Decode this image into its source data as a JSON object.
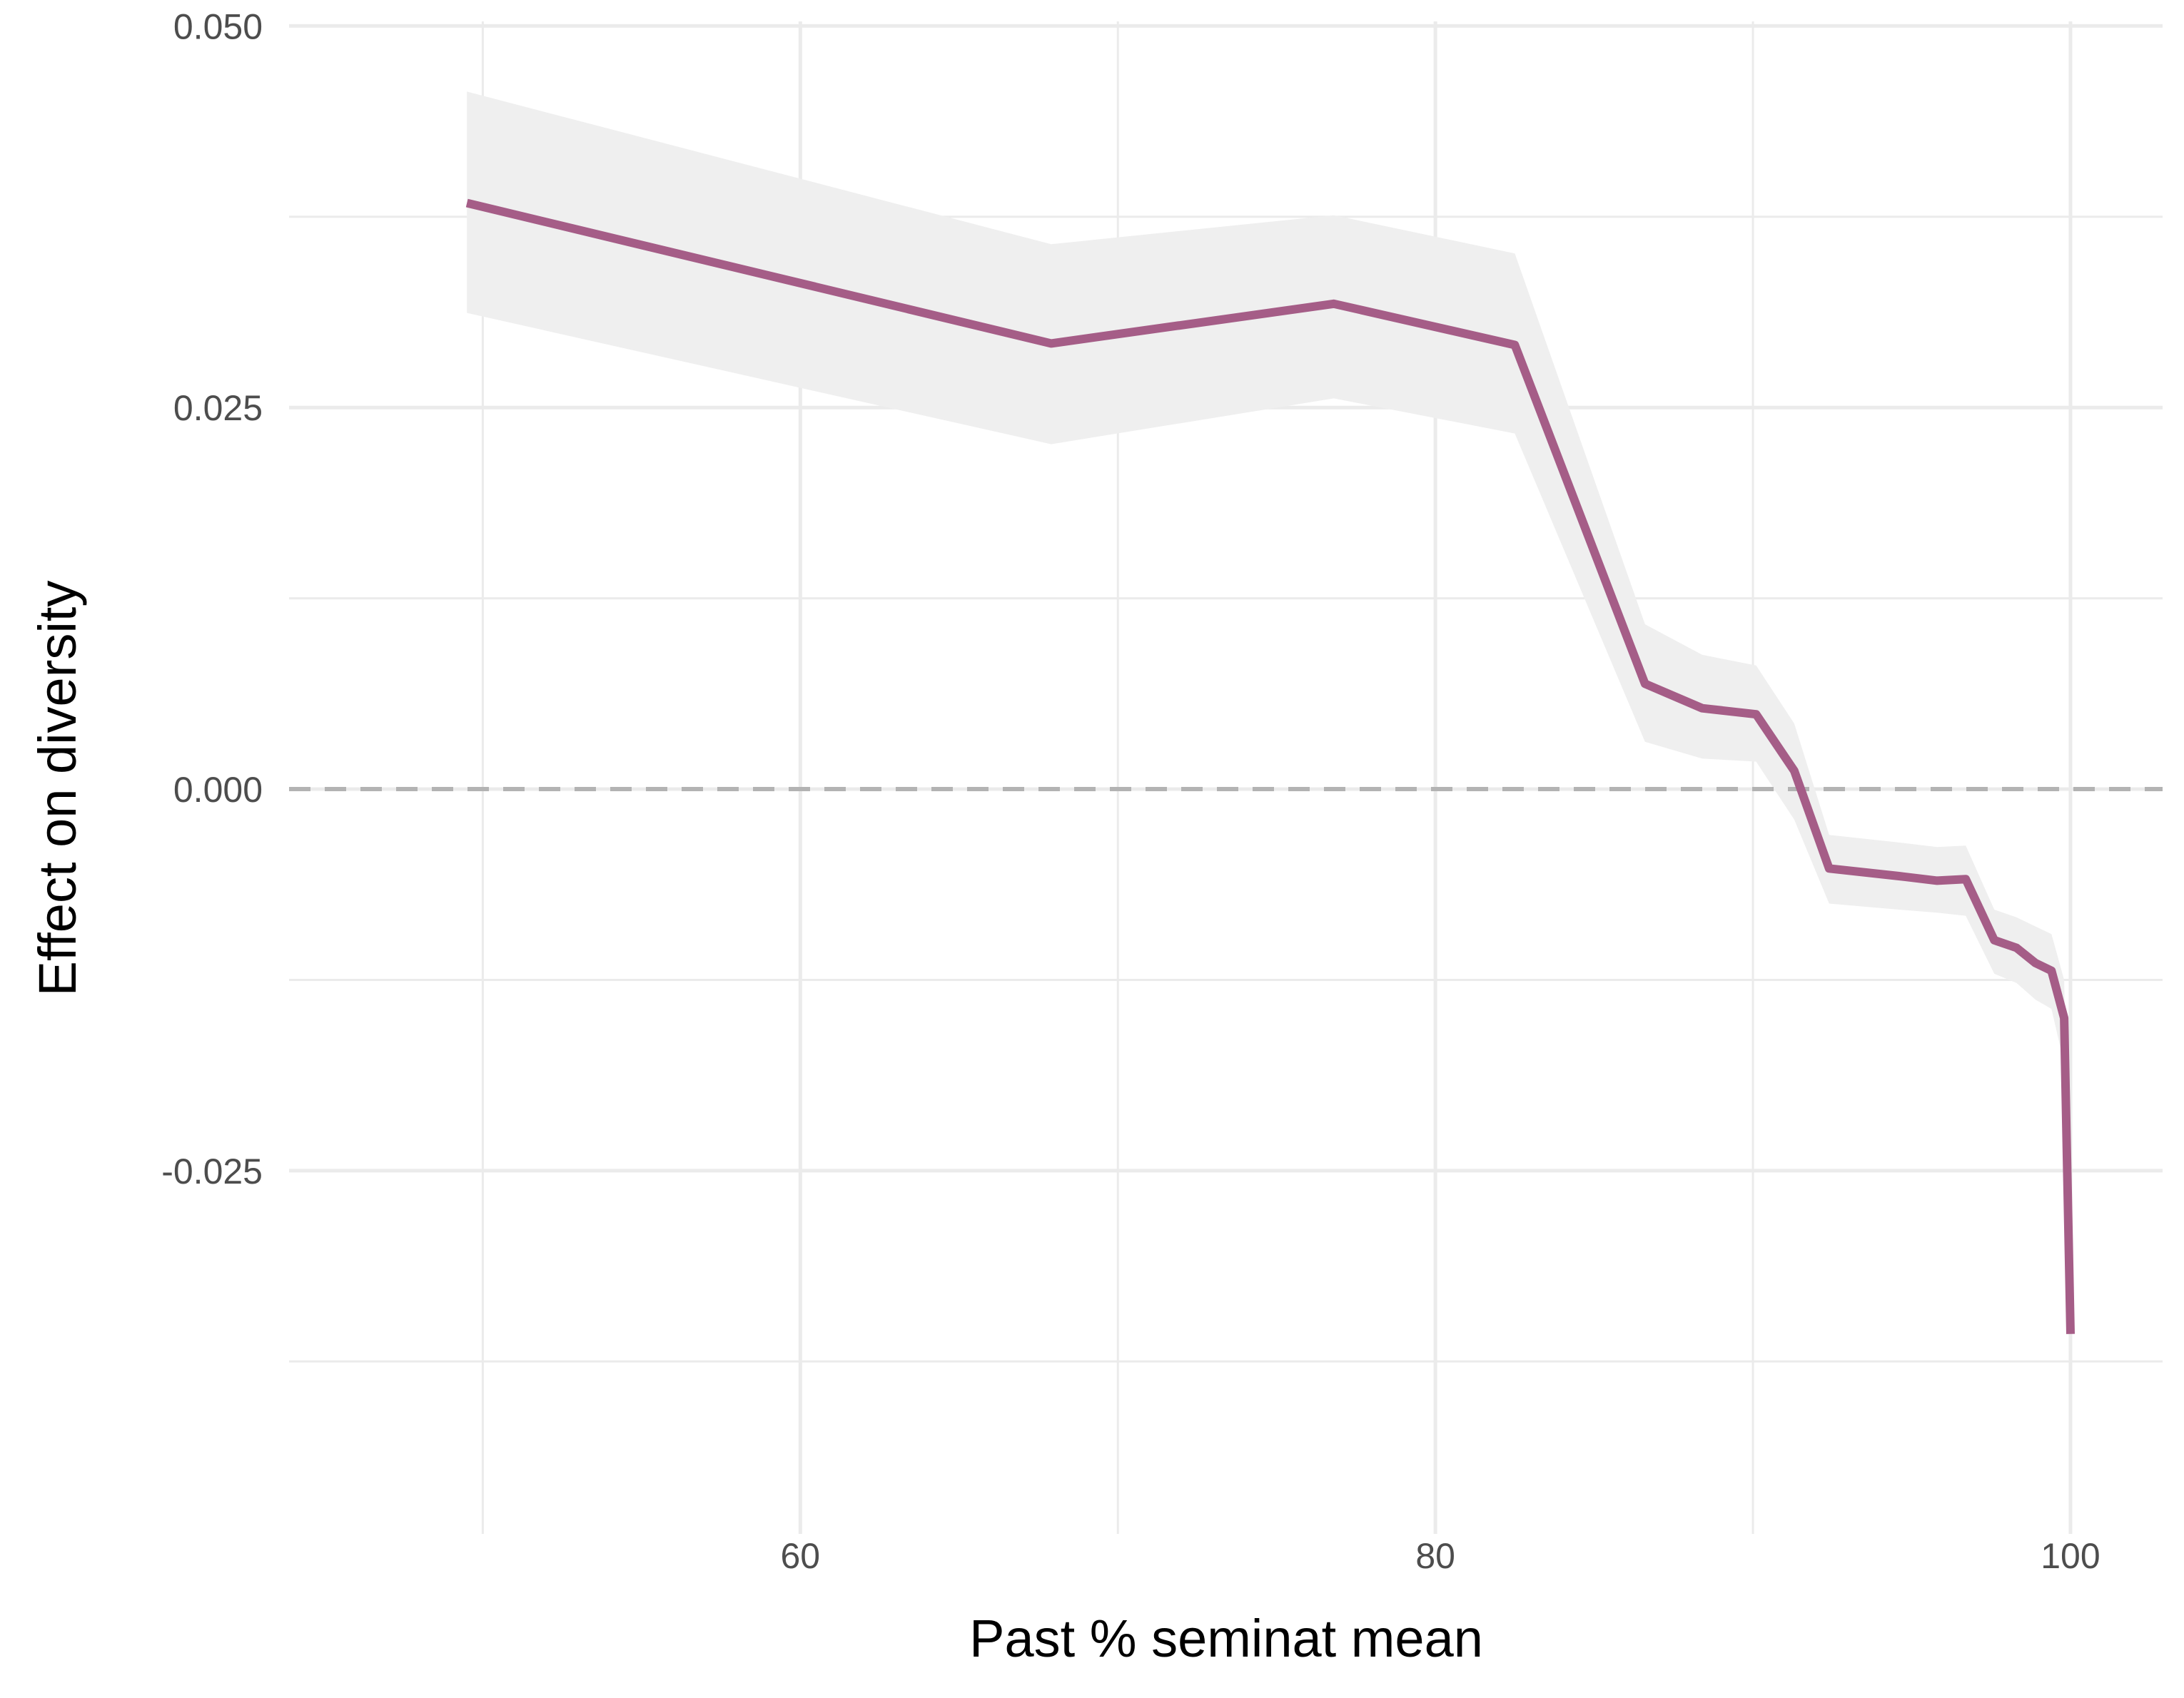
{
  "chart_data": {
    "type": "line",
    "xlabel": "Past % seminat mean",
    "ylabel": "Effect on diversity",
    "x_ticks": [
      60,
      80,
      100
    ],
    "x_tick_labels": [
      "60",
      "80",
      "100"
    ],
    "y_ticks": [
      -0.025,
      0.0,
      0.025,
      0.05
    ],
    "y_tick_labels": [
      "-0.025",
      "0.000",
      "0.025",
      "0.050"
    ],
    "xlim": [
      43.9,
      102.9
    ],
    "ylim": [
      -0.0488,
      0.0503
    ],
    "reference_line": {
      "y": 0.0,
      "style": "dashed",
      "color": "#b3b3b3"
    },
    "grid": true,
    "line_color": "#a55d87",
    "band_color": "#efefef",
    "series": [
      {
        "x": [
          49.5,
          67.9,
          76.8,
          82.5,
          86.6,
          88.4,
          90.1,
          91.3,
          92.4,
          94.6,
          95.8,
          96.7,
          97.6,
          98.3,
          98.9,
          99.4,
          99.8,
          100.0
        ],
        "y": [
          0.0384,
          0.0292,
          0.0318,
          0.0291,
          0.0069,
          0.0053,
          0.0049,
          0.0012,
          -0.0052,
          -0.0057,
          -0.006,
          -0.0059,
          -0.0099,
          -0.0104,
          -0.0114,
          -0.0119,
          -0.015,
          -0.0357
        ],
        "lower": [
          0.0312,
          0.0226,
          0.0256,
          0.0233,
          0.0031,
          0.002,
          0.0018,
          -0.002,
          -0.0075,
          -0.0079,
          -0.0081,
          -0.0083,
          -0.0121,
          -0.0127,
          -0.0138,
          -0.0144,
          -0.018,
          -0.037
        ],
        "upper": [
          0.0457,
          0.0357,
          0.0376,
          0.0351,
          0.0108,
          0.0088,
          0.0081,
          0.0043,
          -0.003,
          -0.0035,
          -0.0038,
          -0.0037,
          -0.0079,
          -0.0084,
          -0.009,
          -0.0095,
          -0.0125,
          -0.0345
        ]
      }
    ]
  }
}
